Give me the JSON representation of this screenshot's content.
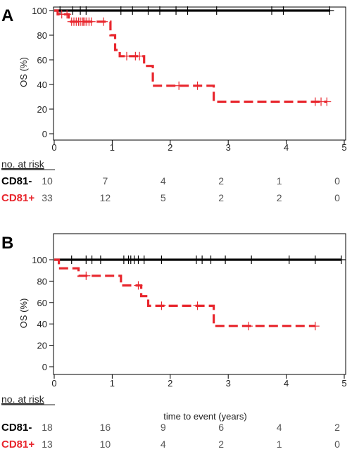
{
  "chart_data": [
    {
      "type": "line",
      "panel_label": "A",
      "title": "",
      "xlabel": "",
      "ylabel": "OS (%)",
      "xlim": [
        0,
        5
      ],
      "ylim": [
        0,
        100
      ],
      "xticks": [
        0,
        1,
        2,
        3,
        4,
        5
      ],
      "yticks": [
        0,
        20,
        40,
        60,
        80,
        100
      ],
      "grid": false,
      "series": [
        {
          "name": "CD81-",
          "color": "#000000",
          "style": "solid",
          "x": [
            0,
            4.75
          ],
          "y": [
            100,
            100
          ],
          "censor_x": [
            0.1,
            0.32,
            0.45,
            0.55,
            1.15,
            1.35,
            1.62,
            1.82,
            2.1,
            2.3,
            2.8,
            3.75,
            3.95,
            4.75
          ],
          "censor_y": [
            100,
            100,
            100,
            100,
            100,
            100,
            100,
            100,
            100,
            100,
            100,
            100,
            100,
            100
          ]
        },
        {
          "name": "CD81+",
          "color": "#e8262d",
          "style": "dashed",
          "x": [
            0,
            0.06,
            0.06,
            0.25,
            0.25,
            0.97,
            0.97,
            1.05,
            1.05,
            1.13,
            1.13,
            1.55,
            1.55,
            1.7,
            1.7,
            2.75,
            2.75,
            4.7
          ],
          "y": [
            100,
            100,
            97,
            97,
            91,
            91,
            80,
            80,
            68,
            68,
            63,
            63,
            55,
            55,
            39,
            39,
            26,
            26
          ],
          "censor_x": [
            0.13,
            0.22,
            0.3,
            0.34,
            0.38,
            0.42,
            0.45,
            0.48,
            0.5,
            0.53,
            0.56,
            0.6,
            0.64,
            0.85,
            1.25,
            1.4,
            1.47,
            2.15,
            2.47,
            4.5,
            4.6,
            4.7
          ],
          "censor_y": [
            97,
            97,
            91,
            91,
            91,
            91,
            91,
            91,
            91,
            91,
            91,
            91,
            91,
            91,
            63,
            63,
            63,
            39,
            39,
            26,
            26,
            26
          ]
        }
      ],
      "risk_table": {
        "title": "no. at risk",
        "times": [
          0,
          1,
          2,
          3,
          4,
          5
        ],
        "rows": [
          {
            "label": "CD81-",
            "color": "#000000",
            "counts": [
              "10",
              "7",
              "4",
              "2",
              "1",
              "0"
            ]
          },
          {
            "label": "CD81+",
            "color": "#e8262d",
            "counts": [
              "33",
              "12",
              "5",
              "2",
              "2",
              "0"
            ]
          }
        ]
      }
    },
    {
      "type": "line",
      "panel_label": "B",
      "title": "",
      "xlabel": "time to event (years)",
      "ylabel": "OS (%)",
      "xlim": [
        0,
        5
      ],
      "ylim": [
        0,
        100
      ],
      "xticks": [
        0,
        1,
        2,
        3,
        4,
        5
      ],
      "yticks": [
        0,
        20,
        40,
        60,
        80,
        100
      ],
      "grid": false,
      "series": [
        {
          "name": "CD81-",
          "color": "#000000",
          "style": "solid",
          "x": [
            0,
            4.95
          ],
          "y": [
            100,
            100
          ],
          "censor_x": [
            0.3,
            0.55,
            0.65,
            0.8,
            1.2,
            1.28,
            1.32,
            1.38,
            1.45,
            1.55,
            1.85,
            2.45,
            2.55,
            2.7,
            2.95,
            3.4,
            4.05,
            4.5,
            4.95
          ],
          "censor_y": [
            100,
            100,
            100,
            100,
            100,
            100,
            100,
            100,
            100,
            100,
            100,
            100,
            100,
            100,
            100,
            100,
            100,
            100,
            100
          ]
        },
        {
          "name": "CD81+",
          "color": "#e8262d",
          "style": "dashed",
          "x": [
            0,
            0.08,
            0.08,
            0.42,
            0.42,
            1.15,
            1.15,
            1.5,
            1.5,
            1.62,
            1.62,
            2.75,
            2.75,
            4.5
          ],
          "y": [
            100,
            100,
            92,
            92,
            85,
            85,
            76,
            76,
            66,
            66,
            57,
            57,
            38,
            38
          ],
          "censor_x": [
            0.55,
            1.45,
            1.85,
            2.47,
            3.35,
            4.5
          ],
          "censor_y": [
            85,
            76,
            57,
            57,
            38,
            38
          ]
        }
      ],
      "risk_table": {
        "title": "no. at risk",
        "times": [
          0,
          1,
          2,
          3,
          4,
          5
        ],
        "rows": [
          {
            "label": "CD81-",
            "color": "#000000",
            "counts": [
              "18",
              "16",
              "9",
              "6",
              "4",
              "2"
            ]
          },
          {
            "label": "CD81+",
            "color": "#e8262d",
            "counts": [
              "13",
              "10",
              "4",
              "2",
              "1",
              "0"
            ]
          }
        ]
      }
    }
  ]
}
